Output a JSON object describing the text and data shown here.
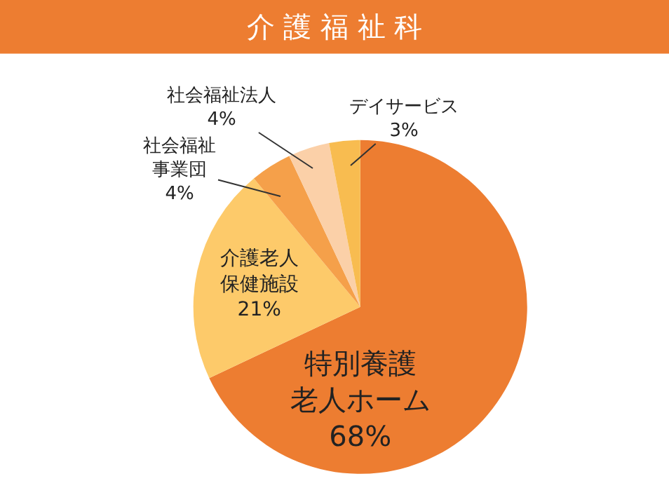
{
  "chart_data": {
    "type": "pie",
    "title": "介 護 福 祉 科",
    "categories": [
      "特別養護老人ホーム",
      "介護老人保健施設",
      "社会福祉事業団",
      "社会福祉法人",
      "デイサービス"
    ],
    "values": [
      68,
      21,
      4,
      4,
      3
    ],
    "value_labels": [
      "68%",
      "21%",
      "4%",
      "4%",
      "3%"
    ],
    "colors": [
      "#ed7d31",
      "#fdca6a",
      "#f5a04a",
      "#fbd0a8",
      "#f8bc50"
    ]
  }
}
